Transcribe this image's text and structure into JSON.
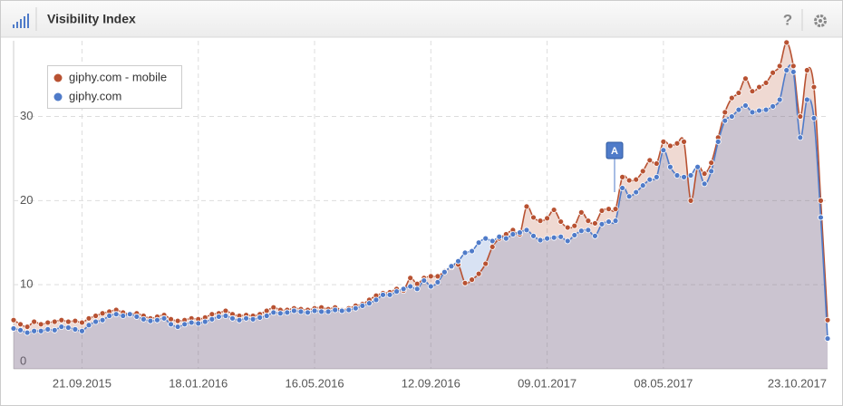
{
  "header": {
    "title": "Visibility Index",
    "help": "?"
  },
  "chart_data": {
    "type": "line",
    "categories": [
      null,
      null,
      null,
      null,
      null,
      null,
      null,
      null,
      null,
      null,
      "21.09.2015",
      null,
      null,
      null,
      null,
      null,
      null,
      null,
      null,
      null,
      null,
      null,
      null,
      null,
      null,
      null,
      null,
      "18.01.2016",
      null,
      null,
      null,
      null,
      null,
      null,
      null,
      null,
      null,
      null,
      null,
      null,
      null,
      null,
      null,
      null,
      "16.05.2016",
      null,
      null,
      null,
      null,
      null,
      null,
      null,
      null,
      null,
      null,
      null,
      null,
      null,
      null,
      null,
      null,
      "12.09.2016",
      null,
      null,
      null,
      null,
      null,
      null,
      null,
      null,
      null,
      null,
      null,
      null,
      null,
      null,
      null,
      null,
      "09.01.2017",
      null,
      null,
      null,
      null,
      null,
      null,
      null,
      null,
      null,
      null,
      null,
      null,
      null,
      null,
      null,
      null,
      "08.05.2017",
      null,
      null,
      null,
      null,
      null,
      null,
      null,
      null,
      null,
      null,
      null,
      null,
      null,
      null,
      null,
      null,
      null,
      null,
      null,
      null,
      null,
      null,
      null,
      "23.10.2017"
    ],
    "series": [
      {
        "name": "giphy.com - mobile",
        "color": "#b85232",
        "values": [
          5.8,
          5.3,
          5.0,
          5.6,
          5.3,
          5.5,
          5.6,
          5.8,
          5.6,
          5.7,
          5.5,
          6.0,
          6.3,
          6.6,
          6.8,
          7.0,
          6.7,
          6.5,
          6.6,
          6.3,
          6.0,
          6.2,
          6.4,
          5.9,
          5.7,
          5.8,
          6.0,
          5.9,
          6.1,
          6.5,
          6.6,
          6.9,
          6.5,
          6.3,
          6.4,
          6.3,
          6.5,
          6.9,
          7.3,
          7.0,
          7.0,
          7.2,
          7.1,
          7.0,
          7.2,
          7.3,
          7.1,
          7.3,
          7.0,
          7.2,
          7.5,
          7.7,
          8.2,
          8.7,
          9.0,
          9.1,
          9.5,
          9.3,
          10.8,
          10.1,
          10.8,
          11.0,
          11.0,
          11.6,
          12.1,
          12.4,
          10.2,
          10.6,
          11.3,
          12.5,
          14.5,
          15.5,
          16.0,
          16.5,
          16.0,
          19.3,
          18.0,
          17.6,
          17.9,
          18.9,
          17.5,
          16.8,
          17.0,
          18.6,
          17.6,
          17.3,
          18.8,
          19.0,
          19.0,
          22.8,
          22.4,
          22.5,
          23.5,
          24.8,
          24.4,
          27.0,
          26.5,
          26.8,
          27.0,
          20.0,
          24.0,
          23.2,
          24.5,
          27.5,
          30.5,
          32.2,
          32.8,
          34.5,
          33.0,
          33.5,
          34.0,
          35.2,
          36.0,
          38.8,
          36.0,
          30.0,
          35.5,
          33.5,
          20.0,
          5.8
        ]
      },
      {
        "name": "giphy.com",
        "color": "#4f7bc9",
        "values": [
          4.8,
          4.6,
          4.3,
          4.5,
          4.5,
          4.7,
          4.6,
          5.0,
          4.9,
          4.7,
          4.5,
          5.2,
          5.6,
          5.8,
          6.3,
          6.5,
          6.3,
          6.5,
          6.2,
          5.9,
          5.7,
          5.8,
          6.0,
          5.3,
          5.0,
          5.3,
          5.5,
          5.4,
          5.6,
          5.9,
          6.2,
          6.3,
          6.0,
          5.8,
          6.0,
          5.9,
          6.1,
          6.3,
          6.7,
          6.6,
          6.7,
          6.9,
          6.8,
          6.7,
          6.9,
          6.8,
          6.8,
          7.0,
          6.9,
          7.0,
          7.2,
          7.5,
          7.8,
          8.2,
          8.8,
          8.8,
          9.2,
          9.5,
          9.8,
          9.5,
          10.5,
          9.8,
          10.3,
          11.5,
          12.2,
          12.8,
          13.8,
          14.0,
          15.0,
          15.5,
          15.2,
          15.7,
          15.5,
          16.0,
          16.2,
          16.5,
          15.8,
          15.3,
          15.5,
          15.6,
          15.7,
          15.2,
          15.9,
          16.4,
          16.5,
          15.8,
          17.2,
          17.5,
          17.6,
          21.5,
          20.5,
          21.0,
          21.8,
          22.5,
          22.8,
          26.0,
          24.0,
          23.0,
          22.8,
          23.0,
          24.0,
          22.0,
          23.5,
          27.0,
          29.5,
          30.0,
          30.8,
          31.3,
          30.5,
          30.7,
          30.8,
          31.2,
          32.0,
          35.5,
          35.3,
          27.5,
          32.0,
          29.8,
          18.0,
          3.6
        ]
      }
    ],
    "ylim": [
      0,
      39
    ],
    "yticks": [
      0,
      10,
      20,
      30
    ],
    "grid": true,
    "legend": "top-left",
    "annotations": [
      {
        "text": "A"
      }
    ]
  }
}
